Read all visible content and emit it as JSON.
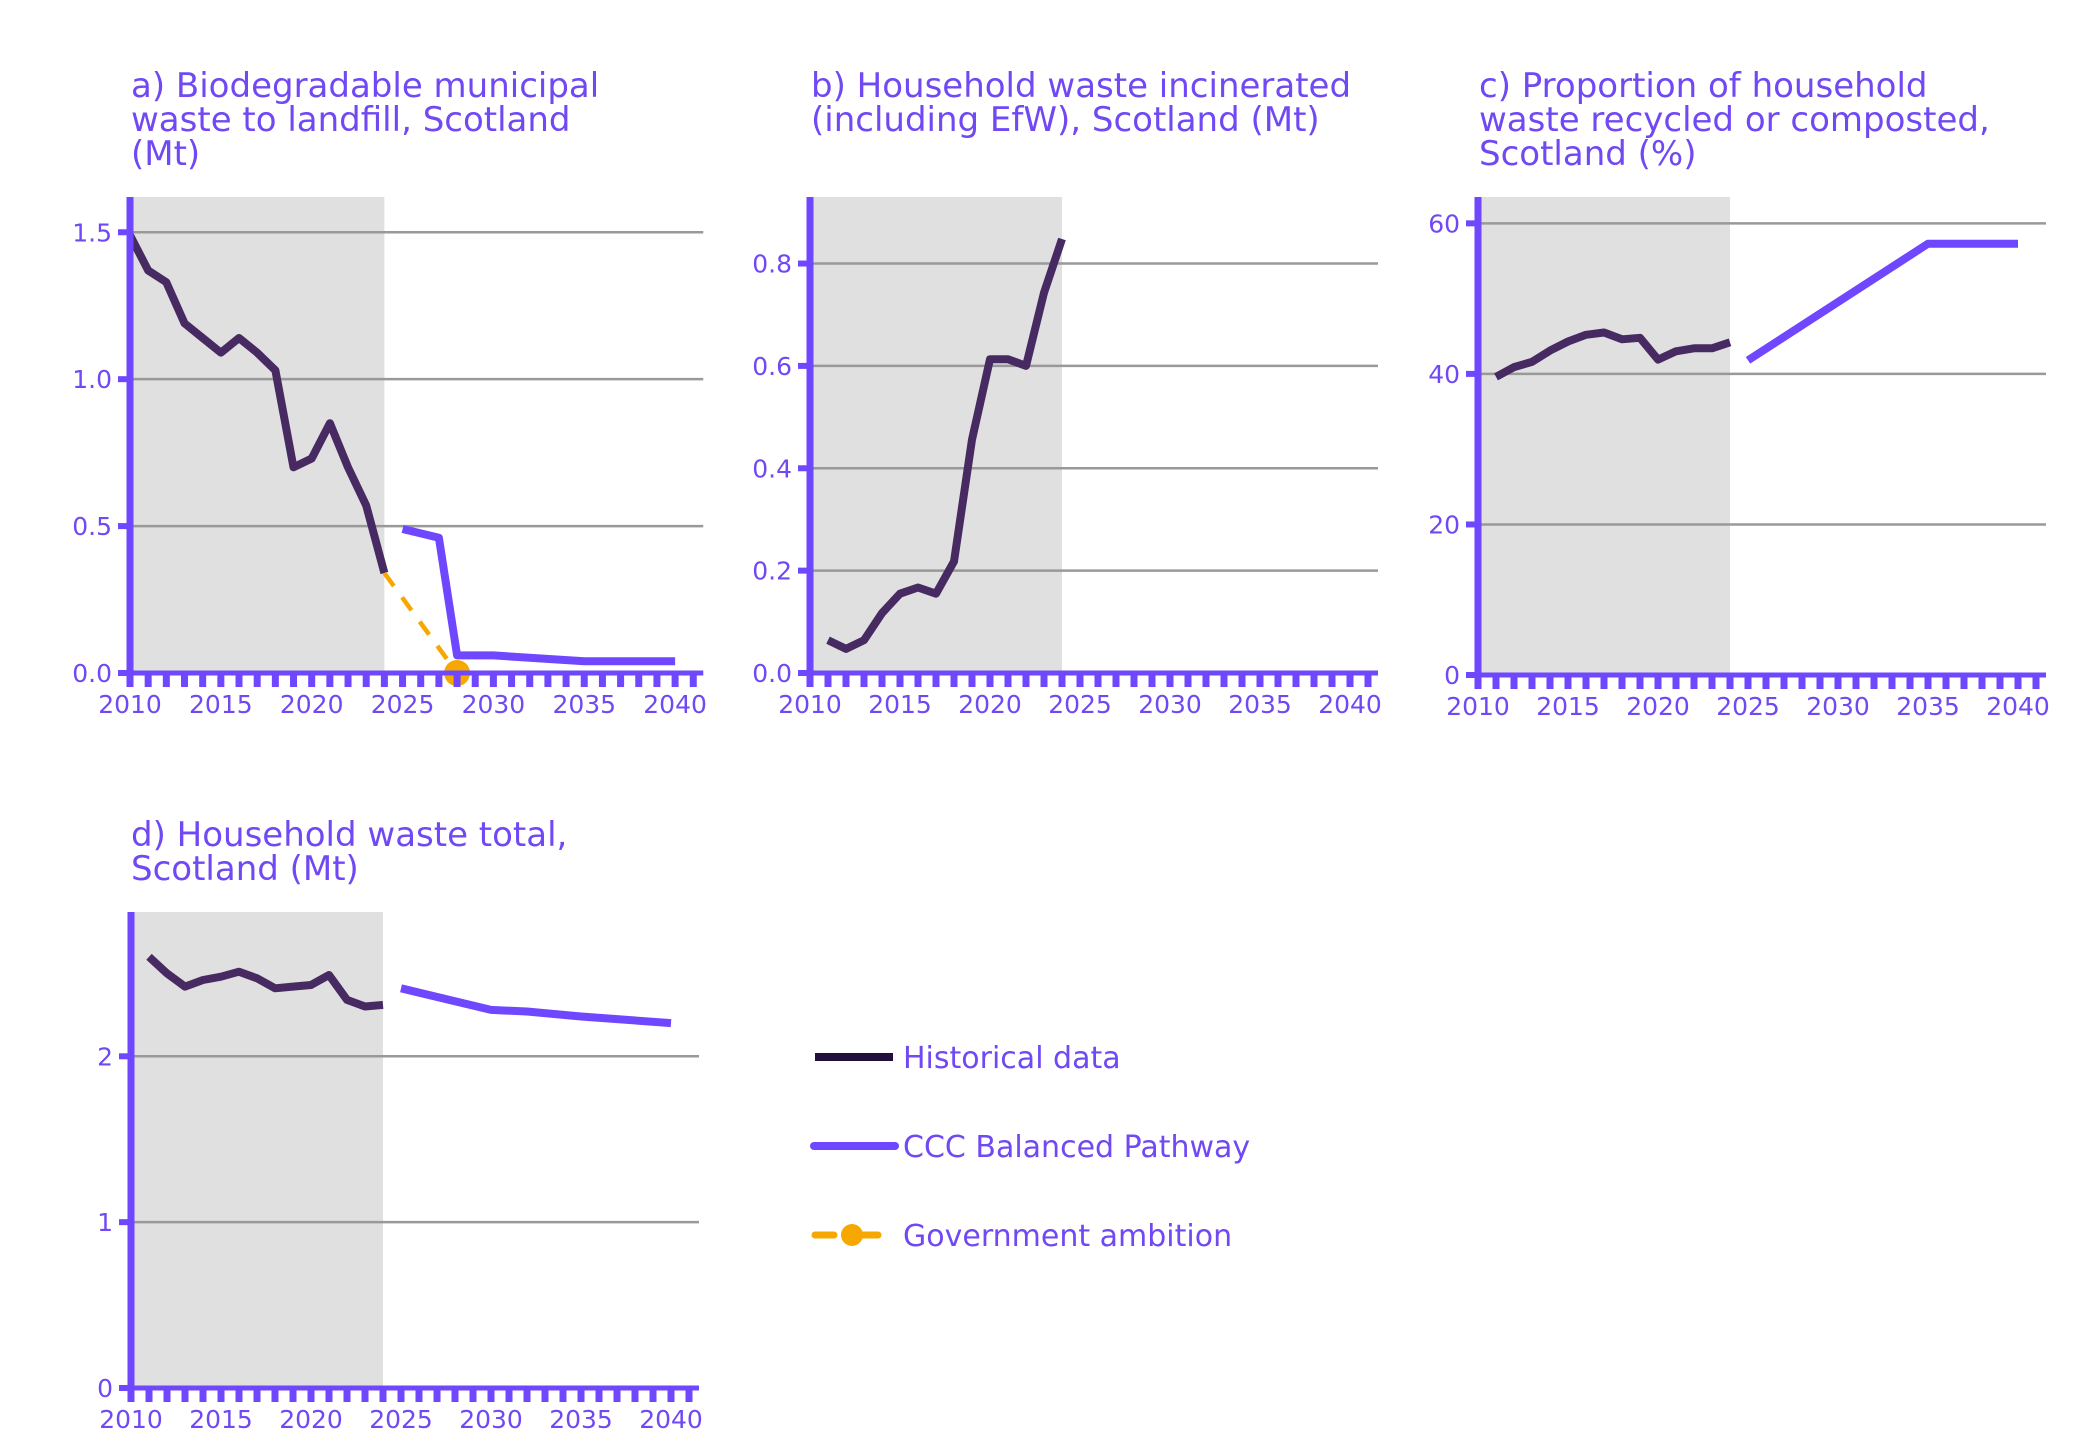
{
  "colors": {
    "accent": "#7048f4",
    "historical": "#482a62",
    "pathway": "#6f47ff",
    "ambition": "#f7a800",
    "shade": "#e0e0e0",
    "grid": "#999999"
  },
  "legend": {
    "items": [
      {
        "key": "historical",
        "label": "Historical data",
        "icon": "solid-line-icon"
      },
      {
        "key": "pathway",
        "label": "CCC Balanced Pathway",
        "icon": "solid-line-icon"
      },
      {
        "key": "ambition",
        "label": "Government ambition",
        "icon": "dashed-line-dot-icon"
      }
    ]
  },
  "chart_data": [
    {
      "id": "a",
      "type": "line",
      "title_lines": [
        "a) Biodegradable municipal",
        "waste to landfill, Scotland",
        "(Mt)"
      ],
      "xlabel": "",
      "ylabel": "",
      "xlim": [
        2010,
        2041
      ],
      "ylim": [
        0,
        1.62
      ],
      "x_ticks": [
        2010,
        2015,
        2020,
        2025,
        2030,
        2035,
        2040
      ],
      "y_ticks": [
        0.0,
        0.5,
        1.0,
        1.5
      ],
      "y_tick_labels": [
        "0.0",
        "0.5",
        "1.0",
        "1.5"
      ],
      "shaded_range": [
        2010,
        2024
      ],
      "grid": true,
      "series": [
        {
          "name": "Historical data",
          "key": "historical",
          "x": [
            2010,
            2011,
            2012,
            2013,
            2014,
            2015,
            2016,
            2017,
            2018,
            2019,
            2020,
            2021,
            2022,
            2023,
            2024
          ],
          "y": [
            1.49,
            1.37,
            1.33,
            1.19,
            1.14,
            1.09,
            1.14,
            1.09,
            1.03,
            0.7,
            0.73,
            0.85,
            0.7,
            0.57,
            0.34
          ]
        },
        {
          "name": "CCC Balanced Pathway",
          "key": "pathway",
          "x": [
            2025,
            2027,
            2028,
            2030,
            2035,
            2040
          ],
          "y": [
            0.49,
            0.46,
            0.06,
            0.06,
            0.04,
            0.04
          ]
        },
        {
          "name": "Government ambition",
          "key": "ambition",
          "x": [
            2024,
            2028
          ],
          "y": [
            0.34,
            0.0
          ],
          "marker_at_end": true
        }
      ]
    },
    {
      "id": "b",
      "type": "line",
      "title_lines": [
        "b) Household waste incinerated",
        "(including EfW), Scotland (Mt)"
      ],
      "xlabel": "",
      "ylabel": "",
      "xlim": [
        2010,
        2041
      ],
      "ylim": [
        0,
        0.93
      ],
      "x_ticks": [
        2010,
        2015,
        2020,
        2025,
        2030,
        2035,
        2040
      ],
      "y_ticks": [
        0.0,
        0.2,
        0.4,
        0.6,
        0.8
      ],
      "y_tick_labels": [
        "0.0",
        "0.2",
        "0.4",
        "0.6",
        "0.8"
      ],
      "shaded_range": [
        2010,
        2024
      ],
      "grid": true,
      "series": [
        {
          "name": "Historical data",
          "key": "historical",
          "x": [
            2011,
            2012,
            2013,
            2014,
            2015,
            2016,
            2017,
            2018,
            2019,
            2020,
            2021,
            2022,
            2023,
            2024
          ],
          "y": [
            0.064,
            0.047,
            0.064,
            0.117,
            0.155,
            0.167,
            0.155,
            0.218,
            0.456,
            0.613,
            0.613,
            0.6,
            0.743,
            0.848
          ]
        }
      ]
    },
    {
      "id": "c",
      "type": "line",
      "title_lines": [
        "c) Proportion of household",
        "waste recycled or composted,",
        "Scotland (%)"
      ],
      "xlabel": "",
      "ylabel": "",
      "xlim": [
        2010,
        2041
      ],
      "ylim": [
        0,
        63.5
      ],
      "x_ticks": [
        2010,
        2015,
        2020,
        2025,
        2030,
        2035,
        2040
      ],
      "y_ticks": [
        0,
        20,
        40,
        60
      ],
      "y_tick_labels": [
        "0",
        "20",
        "40",
        "60"
      ],
      "shaded_range": [
        2010,
        2024
      ],
      "grid": true,
      "series": [
        {
          "name": "Historical data",
          "key": "historical",
          "x": [
            2011,
            2012,
            2013,
            2014,
            2015,
            2016,
            2017,
            2018,
            2019,
            2020,
            2021,
            2022,
            2023,
            2024
          ],
          "y": [
            39.6,
            40.9,
            41.6,
            43.1,
            44.3,
            45.2,
            45.5,
            44.6,
            44.8,
            41.9,
            43.0,
            43.4,
            43.4,
            44.2
          ]
        },
        {
          "name": "CCC Balanced Pathway",
          "key": "pathway",
          "x": [
            2025,
            2035,
            2040
          ],
          "y": [
            41.8,
            57.3,
            57.3
          ]
        }
      ]
    },
    {
      "id": "d",
      "type": "line",
      "title_lines": [
        "d) Household waste total,",
        "Scotland (Mt)"
      ],
      "xlabel": "",
      "ylabel": "",
      "xlim": [
        2010,
        2041
      ],
      "ylim": [
        0,
        2.87
      ],
      "x_ticks": [
        2010,
        2015,
        2020,
        2025,
        2030,
        2035,
        2040
      ],
      "y_ticks": [
        0,
        1,
        2
      ],
      "y_tick_labels": [
        "0",
        "1",
        "2"
      ],
      "shaded_range": [
        2010,
        2024
      ],
      "grid": true,
      "series": [
        {
          "name": "Historical data",
          "key": "historical",
          "x": [
            2011,
            2012,
            2013,
            2014,
            2015,
            2016,
            2017,
            2018,
            2019,
            2020,
            2021,
            2022,
            2023,
            2024
          ],
          "y": [
            2.6,
            2.5,
            2.42,
            2.46,
            2.48,
            2.51,
            2.47,
            2.41,
            2.42,
            2.43,
            2.49,
            2.34,
            2.3,
            2.31
          ]
        },
        {
          "name": "CCC Balanced Pathway",
          "key": "pathway",
          "x": [
            2025,
            2030,
            2032,
            2035,
            2040
          ],
          "y": [
            2.41,
            2.28,
            2.27,
            2.24,
            2.2
          ]
        }
      ]
    }
  ]
}
